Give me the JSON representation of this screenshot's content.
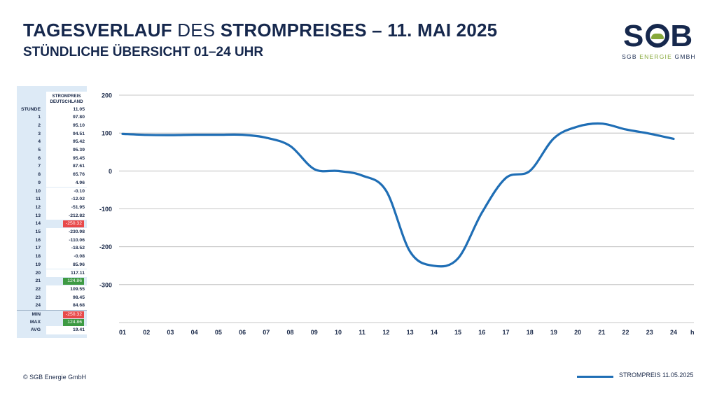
{
  "header": {
    "title_part1": "TAGESVERLAUF",
    "title_part2": "DES",
    "title_part3": "STROMPREISES – 11. MAI 2025",
    "subtitle": "STÜNDLICHE ÜBERSICHT 01–24 UHR"
  },
  "logo": {
    "letters_left": "S",
    "letters_right": "B",
    "caption_part1": "SGB",
    "caption_part2": "ENERGIE",
    "caption_part3": "GMBH",
    "colors": {
      "navy": "#16284d",
      "green": "#86a83a"
    }
  },
  "table": {
    "column_header_line1": "STROMPREIS",
    "column_header_line2": "DEUTSCHLAND",
    "date_row_key": "STUNDE",
    "date_row_value": "11.05",
    "rows": [
      {
        "hour": "1",
        "value": "97.80"
      },
      {
        "hour": "2",
        "value": "95.10"
      },
      {
        "hour": "3",
        "value": "94.51"
      },
      {
        "hour": "4",
        "value": "95.42"
      },
      {
        "hour": "5",
        "value": "95.39"
      },
      {
        "hour": "6",
        "value": "95.45"
      },
      {
        "hour": "7",
        "value": "87.61"
      },
      {
        "hour": "8",
        "value": "65.76"
      },
      {
        "hour": "9",
        "value": "4.96"
      },
      {
        "hour": "10",
        "value": "-0.10"
      },
      {
        "hour": "11",
        "value": "-12.02"
      },
      {
        "hour": "12",
        "value": "-51.95"
      },
      {
        "hour": "13",
        "value": "-212.82"
      },
      {
        "hour": "14",
        "value": "-250.32",
        "highlight": "min"
      },
      {
        "hour": "15",
        "value": "-230.98"
      },
      {
        "hour": "16",
        "value": "-110.06"
      },
      {
        "hour": "17",
        "value": "-18.52"
      },
      {
        "hour": "18",
        "value": "-0.08"
      },
      {
        "hour": "19",
        "value": "85.96"
      },
      {
        "hour": "20",
        "value": "117.11"
      },
      {
        "hour": "21",
        "value": "124.86",
        "highlight": "max"
      },
      {
        "hour": "22",
        "value": "109.55"
      },
      {
        "hour": "23",
        "value": "98.45"
      },
      {
        "hour": "24",
        "value": "84.68"
      }
    ],
    "summary": [
      {
        "key": "MIN",
        "value": "-250.32",
        "highlight": "min"
      },
      {
        "key": "MAX",
        "value": "124.86",
        "highlight": "max"
      },
      {
        "key": "AVG",
        "value": "19.41"
      }
    ],
    "colors": {
      "panel": "#ddeaf6",
      "min": "#e8494a",
      "max": "#3d9a43"
    }
  },
  "chart_data": {
    "type": "line",
    "x": [
      "01",
      "02",
      "03",
      "04",
      "05",
      "06",
      "07",
      "08",
      "09",
      "10",
      "11",
      "12",
      "13",
      "14",
      "15",
      "16",
      "17",
      "18",
      "19",
      "20",
      "21",
      "22",
      "23",
      "24"
    ],
    "x_unit": "h",
    "series": [
      {
        "name": "STROMPREIS 11.05.2025",
        "color": "#1f6eb5",
        "values": [
          97.8,
          95.1,
          94.51,
          95.42,
          95.39,
          95.45,
          87.61,
          65.76,
          4.96,
          -0.1,
          -12.02,
          -51.95,
          -212.82,
          -250.32,
          -230.98,
          -110.06,
          -18.52,
          -0.08,
          85.96,
          117.11,
          124.86,
          109.55,
          98.45,
          84.68
        ]
      }
    ],
    "yticks": [
      200,
      100,
      0,
      -100,
      -200,
      -300
    ],
    "ylim": [
      -400,
      200
    ],
    "grid": true,
    "legend_position": "bottom-right"
  },
  "footer": {
    "copyright": "© SGB Energie GmbH"
  },
  "legend": {
    "label": "STROMPREIS 11.05.2025"
  }
}
